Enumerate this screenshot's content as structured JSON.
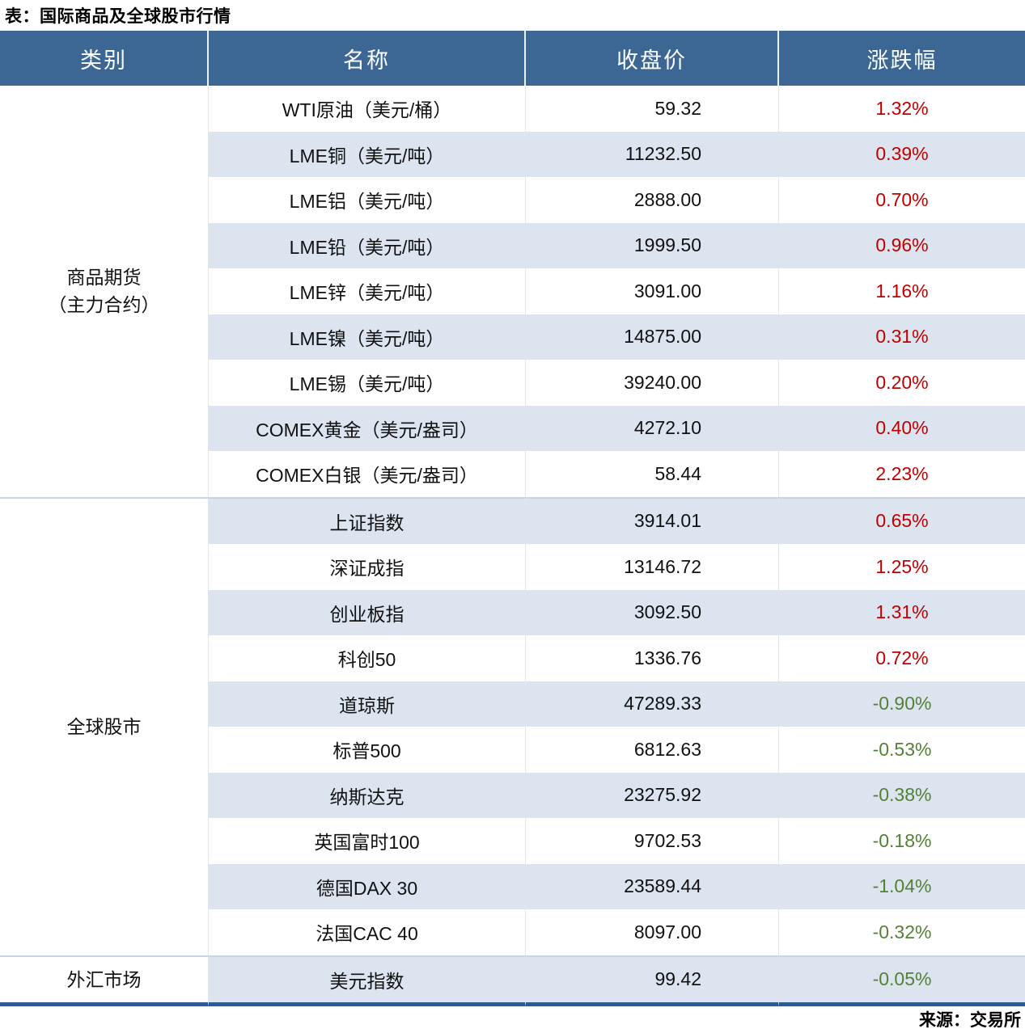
{
  "title": "表：国际商品及全球股市行情",
  "source": "来源：交易所",
  "colors": {
    "header_bg": "#3C6795",
    "stripe_row": "#DBE4EF",
    "gain_text": "#C00000",
    "loss_text": "#538135",
    "bottom_rule": "#2E5B8D"
  },
  "table": {
    "headers": [
      "类别",
      "名称",
      "收盘价",
      "涨跌幅"
    ],
    "groups": [
      {
        "category": "商品期货\n（主力合约）",
        "rows": [
          {
            "name": "WTI原油（美元/桶）",
            "close": "59.32",
            "change": "1.32%",
            "direction": "up"
          },
          {
            "name": "LME铜（美元/吨）",
            "close": "11232.50",
            "change": "0.39%",
            "direction": "up"
          },
          {
            "name": "LME铝（美元/吨）",
            "close": "2888.00",
            "change": "0.70%",
            "direction": "up"
          },
          {
            "name": "LME铅（美元/吨）",
            "close": "1999.50",
            "change": "0.96%",
            "direction": "up"
          },
          {
            "name": "LME锌（美元/吨）",
            "close": "3091.00",
            "change": "1.16%",
            "direction": "up"
          },
          {
            "name": "LME镍（美元/吨）",
            "close": "14875.00",
            "change": "0.31%",
            "direction": "up"
          },
          {
            "name": "LME锡（美元/吨）",
            "close": "39240.00",
            "change": "0.20%",
            "direction": "up"
          },
          {
            "name": "COMEX黄金（美元/盎司）",
            "close": "4272.10",
            "change": "0.40%",
            "direction": "up"
          },
          {
            "name": "COMEX白银（美元/盎司）",
            "close": "58.44",
            "change": "2.23%",
            "direction": "up"
          }
        ]
      },
      {
        "category": "全球股市",
        "rows": [
          {
            "name": "上证指数",
            "close": "3914.01",
            "change": "0.65%",
            "direction": "up"
          },
          {
            "name": "深证成指",
            "close": "13146.72",
            "change": "1.25%",
            "direction": "up"
          },
          {
            "name": "创业板指",
            "close": "3092.50",
            "change": "1.31%",
            "direction": "up"
          },
          {
            "name": "科创50",
            "close": "1336.76",
            "change": "0.72%",
            "direction": "up"
          },
          {
            "name": "道琼斯",
            "close": "47289.33",
            "change": "-0.90%",
            "direction": "down"
          },
          {
            "name": "标普500",
            "close": "6812.63",
            "change": "-0.53%",
            "direction": "down"
          },
          {
            "name": "纳斯达克",
            "close": "23275.92",
            "change": "-0.38%",
            "direction": "down"
          },
          {
            "name": "英国富时100",
            "close": "9702.53",
            "change": "-0.18%",
            "direction": "down"
          },
          {
            "name": "德国DAX 30",
            "close": "23589.44",
            "change": "-1.04%",
            "direction": "down"
          },
          {
            "name": "法国CAC 40",
            "close": "8097.00",
            "change": "-0.32%",
            "direction": "down"
          }
        ]
      },
      {
        "category": "外汇市场",
        "rows": [
          {
            "name": "美元指数",
            "close": "99.42",
            "change": "-0.05%",
            "direction": "down"
          }
        ]
      }
    ]
  },
  "chart_data": {
    "type": "table",
    "title": "表：国际商品及全球股市行情",
    "columns": [
      "类别",
      "名称",
      "收盘价",
      "涨跌幅"
    ],
    "rows": [
      [
        "商品期货（主力合约）",
        "WTI原油（美元/桶）",
        59.32,
        "1.32%"
      ],
      [
        "商品期货（主力合约）",
        "LME铜（美元/吨）",
        11232.5,
        "0.39%"
      ],
      [
        "商品期货（主力合约）",
        "LME铝（美元/吨）",
        2888.0,
        "0.70%"
      ],
      [
        "商品期货（主力合约）",
        "LME铅（美元/吨）",
        1999.5,
        "0.96%"
      ],
      [
        "商品期货（主力合约）",
        "LME锌（美元/吨）",
        3091.0,
        "1.16%"
      ],
      [
        "商品期货（主力合约）",
        "LME镍（美元/吨）",
        14875.0,
        "0.31%"
      ],
      [
        "商品期货（主力合约）",
        "LME锡（美元/吨）",
        39240.0,
        "0.20%"
      ],
      [
        "商品期货（主力合约）",
        "COMEX黄金（美元/盎司）",
        4272.1,
        "0.40%"
      ],
      [
        "商品期货（主力合约）",
        "COMEX白银（美元/盎司）",
        58.44,
        "2.23%"
      ],
      [
        "全球股市",
        "上证指数",
        3914.01,
        "0.65%"
      ],
      [
        "全球股市",
        "深证成指",
        13146.72,
        "1.25%"
      ],
      [
        "全球股市",
        "创业板指",
        3092.5,
        "1.31%"
      ],
      [
        "全球股市",
        "科创50",
        1336.76,
        "0.72%"
      ],
      [
        "全球股市",
        "道琼斯",
        47289.33,
        "-0.90%"
      ],
      [
        "全球股市",
        "标普500",
        6812.63,
        "-0.53%"
      ],
      [
        "全球股市",
        "纳斯达克",
        23275.92,
        "-0.38%"
      ],
      [
        "全球股市",
        "英国富时100",
        9702.53,
        "-0.18%"
      ],
      [
        "全球股市",
        "德国DAX 30",
        23589.44,
        "-1.04%"
      ],
      [
        "全球股市",
        "法国CAC 40",
        8097.0,
        "-0.32%"
      ],
      [
        "外汇市场",
        "美元指数",
        99.42,
        "-0.05%"
      ]
    ],
    "source_note": "来源：交易所"
  }
}
